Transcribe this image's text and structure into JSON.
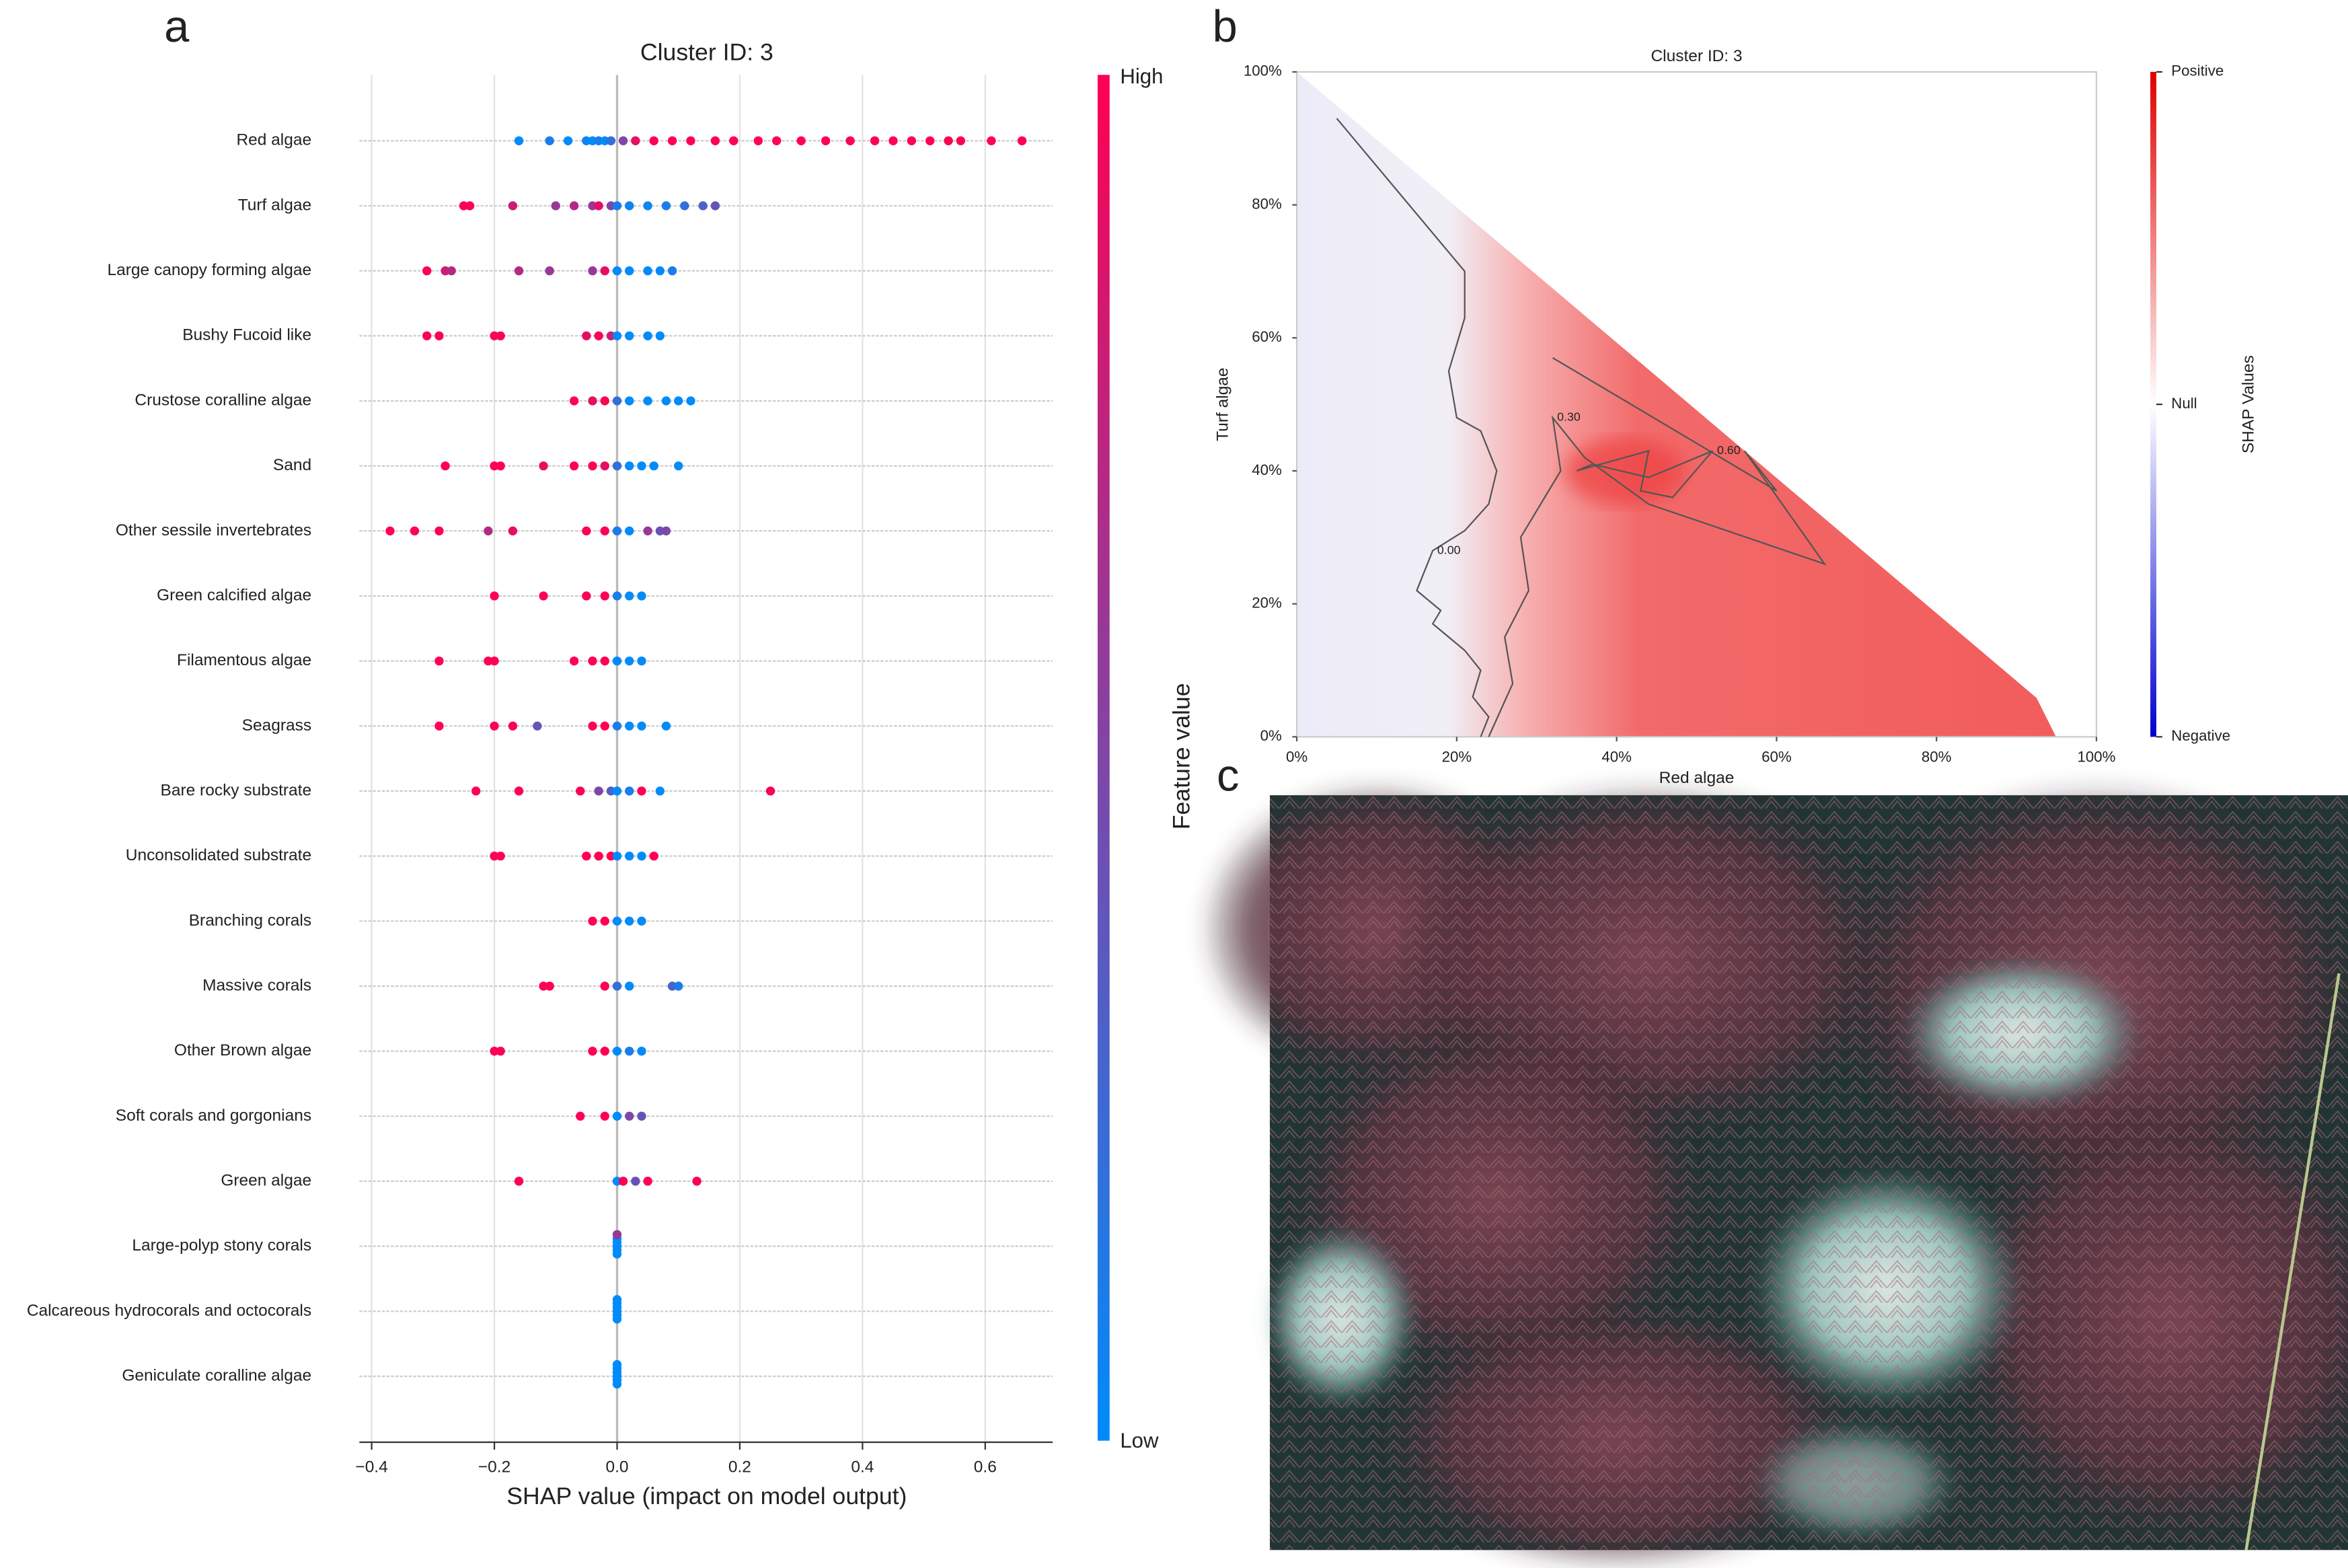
{
  "chart_data": [
    {
      "panel": "a",
      "type": "beeswarm",
      "title": "Cluster ID: 3",
      "x_label": "SHAP value (impact on model output)",
      "xlim": [
        -0.42,
        0.71
      ],
      "xticks": [
        {
          "value": -0.4,
          "label": "−0.4"
        },
        {
          "value": -0.2,
          "label": "−0.2"
        },
        {
          "value": 0,
          "label": "0.0"
        },
        0.2,
        0.4,
        0.6
      ],
      "colorbar": {
        "label": "Feature value",
        "high": "High",
        "low": "Low",
        "colors": [
          "#008bfb",
          "#ff0052"
        ]
      },
      "features": [
        {
          "name": "Red algae",
          "shap": [
            -0.16,
            -0.11,
            -0.08,
            -0.05,
            -0.04,
            -0.03,
            -0.02,
            -0.01,
            0.01,
            0.03,
            0.06,
            0.09,
            0.12,
            0.16,
            0.19,
            0.23,
            0.26,
            0.3,
            0.34,
            0.38,
            0.42,
            0.45,
            0.48,
            0.51,
            0.54,
            0.56,
            0.61,
            0.66
          ],
          "feature_value": [
            0,
            0.1,
            0,
            0.05,
            0,
            0.1,
            0,
            0.2,
            0.5,
            0.9,
            1,
            1,
            1,
            1,
            1,
            1,
            1,
            1,
            1,
            1,
            1,
            1,
            1,
            1,
            1,
            1,
            1,
            1
          ]
        },
        {
          "name": "Turf algae",
          "shap": [
            -0.25,
            -0.24,
            -0.17,
            -0.1,
            -0.07,
            -0.04,
            -0.03,
            -0.01,
            0,
            0.02,
            0.05,
            0.08,
            0.11,
            0.14,
            0.16
          ],
          "feature_value": [
            1,
            1,
            0.8,
            0.6,
            0.7,
            0.6,
            0.9,
            0.5,
            0.1,
            0.05,
            0.05,
            0.1,
            0.2,
            0.3,
            0.4
          ]
        },
        {
          "name": "Large canopy forming algae",
          "shap": [
            -0.31,
            -0.28,
            -0.27,
            -0.16,
            -0.11,
            -0.04,
            -0.02,
            0,
            0.02,
            0.05,
            0.07,
            0.09
          ],
          "feature_value": [
            1,
            0.8,
            0.7,
            0.7,
            0.6,
            0.6,
            0.9,
            0,
            0,
            0,
            0,
            0.1
          ]
        },
        {
          "name": "Bushy Fucoid like",
          "shap": [
            -0.31,
            -0.29,
            -0.2,
            -0.19,
            -0.05,
            -0.03,
            -0.01,
            0,
            0.02,
            0.05,
            0.07
          ],
          "feature_value": [
            1,
            1,
            1,
            1,
            0.9,
            1,
            0.8,
            0,
            0,
            0,
            0
          ]
        },
        {
          "name": "Crustose coralline algae",
          "shap": [
            -0.07,
            -0.04,
            -0.02,
            0,
            0.02,
            0.05,
            0.08,
            0.1,
            0.12
          ],
          "feature_value": [
            1,
            0.9,
            1,
            0.2,
            0,
            0,
            0,
            0,
            0
          ]
        },
        {
          "name": "Sand",
          "shap": [
            -0.28,
            -0.2,
            -0.19,
            -0.12,
            -0.07,
            -0.04,
            -0.02,
            0,
            0.02,
            0.04,
            0.06,
            0.1
          ],
          "feature_value": [
            1,
            1,
            1,
            0.9,
            1,
            1,
            0.9,
            0.2,
            0,
            0,
            0,
            0
          ]
        },
        {
          "name": "Other sessile invertebrates",
          "shap": [
            -0.37,
            -0.33,
            -0.29,
            -0.21,
            -0.17,
            -0.05,
            -0.02,
            0,
            0.02,
            0.05,
            0.07,
            0.08
          ],
          "feature_value": [
            1,
            1,
            1,
            0.7,
            0.9,
            1,
            1,
            0.1,
            0,
            0.6,
            0.4,
            0.5
          ]
        },
        {
          "name": "Green calcified algae",
          "shap": [
            -0.2,
            -0.12,
            -0.05,
            -0.02,
            0,
            0.02,
            0.04
          ],
          "feature_value": [
            1,
            1,
            1,
            1,
            0.1,
            0,
            0
          ]
        },
        {
          "name": "Filamentous algae",
          "shap": [
            -0.29,
            -0.21,
            -0.2,
            -0.07,
            -0.04,
            -0.02,
            0,
            0.02,
            0.04
          ],
          "feature_value": [
            1,
            1,
            1,
            1,
            1,
            1,
            0,
            0,
            0
          ]
        },
        {
          "name": "Seagrass",
          "shap": [
            -0.29,
            -0.2,
            -0.17,
            -0.13,
            -0.04,
            -0.02,
            0,
            0.02,
            0.04,
            0.08
          ],
          "feature_value": [
            1,
            1,
            1,
            0.4,
            1,
            1,
            0.1,
            0,
            0,
            0
          ]
        },
        {
          "name": "Bare rocky substrate",
          "shap": [
            -0.23,
            -0.16,
            -0.06,
            -0.03,
            -0.01,
            0,
            0.02,
            0.04,
            0.07,
            0.25
          ],
          "feature_value": [
            1,
            1,
            1,
            0.5,
            0.3,
            0,
            0.1,
            1,
            0,
            1
          ]
        },
        {
          "name": "Unconsolidated substrate",
          "shap": [
            -0.2,
            -0.19,
            -0.05,
            -0.03,
            -0.01,
            0,
            0.02,
            0.04,
            0.06
          ],
          "feature_value": [
            1,
            1,
            1,
            1,
            1,
            0,
            0,
            0,
            1
          ]
        },
        {
          "name": "Branching corals",
          "shap": [
            -0.04,
            -0.02,
            0,
            0.02,
            0.04
          ],
          "feature_value": [
            1,
            1,
            0,
            0,
            0
          ]
        },
        {
          "name": "Massive corals",
          "shap": [
            -0.12,
            -0.11,
            -0.02,
            0,
            0.02,
            0.09,
            0.1
          ],
          "feature_value": [
            1,
            1,
            1,
            0.2,
            0,
            0.3,
            0.1
          ]
        },
        {
          "name": "Other Brown algae",
          "shap": [
            -0.2,
            -0.19,
            -0.04,
            -0.02,
            0,
            0.02,
            0.04
          ],
          "feature_value": [
            1,
            1,
            1,
            1,
            0,
            0.1,
            0
          ]
        },
        {
          "name": "Soft corals and gorgonians",
          "shap": [
            -0.06,
            -0.02,
            0,
            0.02,
            0.04
          ],
          "feature_value": [
            1,
            1,
            0,
            0.5,
            0.4
          ]
        },
        {
          "name": "Green algae",
          "shap": [
            -0.16,
            0,
            0.01,
            0.03,
            0.05,
            0.13
          ],
          "feature_value": [
            1,
            0,
            1,
            0.4,
            1,
            1
          ]
        },
        {
          "name": "Large-polyp stony corals",
          "shap": [
            0,
            0,
            0,
            0,
            0,
            0
          ],
          "feature_value": [
            0,
            0,
            0,
            0,
            0,
            0.6
          ]
        },
        {
          "name": "Calcareous hydrocorals and octocorals",
          "shap": [
            0,
            0,
            0,
            0,
            0,
            0
          ],
          "feature_value": [
            0,
            0,
            0,
            0,
            0,
            0
          ]
        },
        {
          "name": "Geniculate coralline algae",
          "shap": [
            0,
            0,
            0,
            0,
            0,
            0
          ],
          "feature_value": [
            0,
            0,
            0,
            0,
            0,
            0
          ]
        }
      ]
    },
    {
      "panel": "b",
      "type": "contour",
      "title": "Cluster ID: 3",
      "x_label": "Red algae",
      "y_label": "Turf algae",
      "xlim": [
        0,
        100
      ],
      "ylim": [
        0,
        100
      ],
      "xticks": [
        {
          "value": 0,
          "label": "0%"
        },
        {
          "value": 20,
          "label": "20%"
        },
        {
          "value": 40,
          "label": "40%"
        },
        {
          "value": 60,
          "label": "60%"
        },
        {
          "value": 80,
          "label": "80%"
        },
        {
          "value": 100,
          "label": "100%"
        }
      ],
      "yticks": [
        {
          "value": 0,
          "label": "0%"
        },
        {
          "value": 20,
          "label": "20%"
        },
        {
          "value": 40,
          "label": "40%"
        },
        {
          "value": 60,
          "label": "60%"
        },
        {
          "value": 80,
          "label": "80%"
        },
        {
          "value": 100,
          "label": "100%"
        }
      ],
      "colorbar": {
        "label": "SHAP Values",
        "top": "Positive",
        "middle": "Null",
        "bottom": "Negative"
      },
      "contours": [
        {
          "label": "0.00",
          "x": [
            5,
            21,
            21,
            19,
            20,
            23,
            25,
            24,
            21,
            17,
            15,
            18,
            17,
            21,
            23,
            22,
            24,
            23
          ],
          "y": [
            93,
            70,
            63,
            55,
            48,
            46,
            40,
            35,
            31,
            28,
            22,
            19,
            17,
            13,
            10,
            6,
            3,
            0
          ]
        },
        {
          "label": "0.30",
          "x": [
            24,
            27,
            26,
            29,
            28,
            31,
            33,
            32,
            36,
            44,
            66,
            56,
            60,
            32
          ],
          "y": [
            0,
            8,
            15,
            22,
            30,
            36,
            40,
            48,
            42,
            35,
            26,
            43,
            37,
            57
          ]
        },
        {
          "label": "0.60",
          "x": [
            35,
            44,
            43,
            47,
            52,
            44,
            37,
            35
          ],
          "y": [
            40,
            43,
            37,
            36,
            43,
            39,
            41,
            40
          ]
        }
      ]
    }
  ],
  "photo_panel": "c"
}
